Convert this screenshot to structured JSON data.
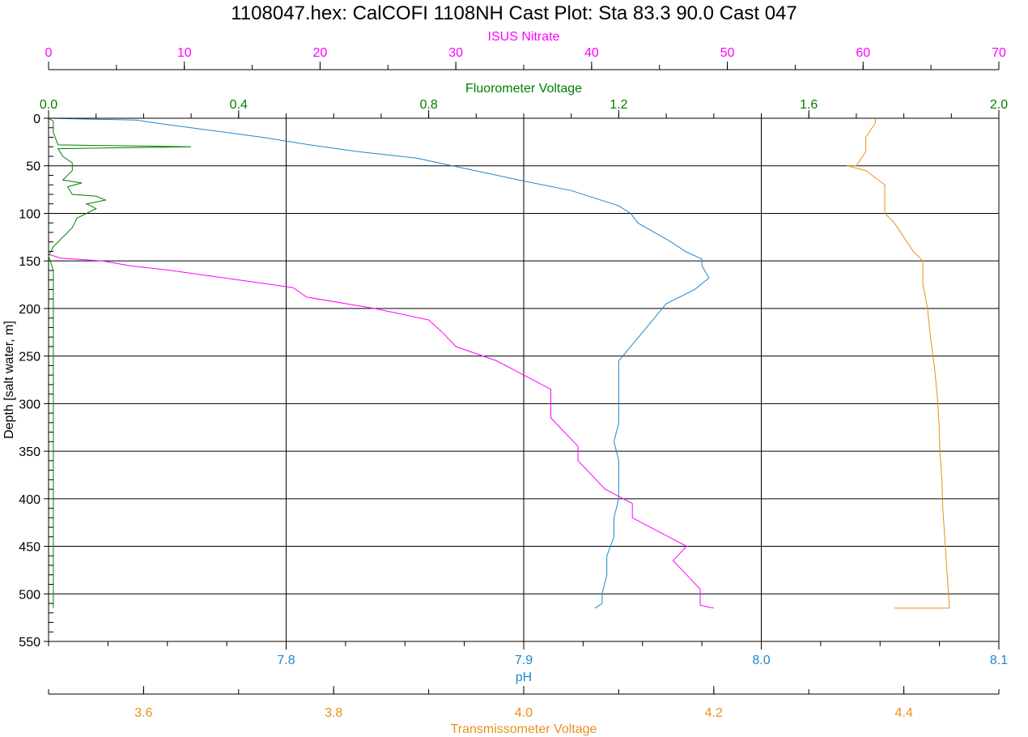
{
  "chart_data": {
    "type": "line",
    "title": "1108047.hex: CalCOFI 1108NH Cast Plot: Sta 83.3  90.0  Cast 047",
    "grid": true,
    "y_axis": {
      "label": "Depth [salt water, m]",
      "range": [
        0,
        550
      ],
      "inverted": true,
      "ticks": [
        0,
        50,
        100,
        150,
        200,
        250,
        300,
        350,
        400,
        450,
        500,
        550
      ],
      "tick_labels": [
        "0",
        "50",
        "100",
        "150",
        "200",
        "250",
        "300",
        "350",
        "400",
        "450",
        "500",
        "550"
      ],
      "color": "#000000"
    },
    "axes": {
      "nitrate": {
        "label": "ISUS Nitrate",
        "position": "top",
        "range": [
          0,
          70
        ],
        "color": "#ff00ff",
        "ticks": [
          0,
          10,
          20,
          30,
          40,
          50,
          60,
          70
        ],
        "tick_labels": [
          "0",
          "10",
          "20",
          "30",
          "40",
          "50",
          "60",
          "70"
        ]
      },
      "fluor": {
        "label": "Fluorometer Voltage",
        "position": "top",
        "range": [
          0,
          2
        ],
        "color": "#008000",
        "ticks": [
          0,
          0.4,
          0.8,
          1.2,
          1.6,
          2.0
        ],
        "tick_labels": [
          "0.0",
          "0.4",
          "0.8",
          "1.2",
          "1.6",
          "2.0"
        ]
      },
      "ph": {
        "label": "pH",
        "position": "bottom",
        "range": [
          7.7,
          8.1
        ],
        "color": "#1e88d0",
        "ticks": [
          7.8,
          7.9,
          8.0,
          8.1
        ],
        "tick_labels": [
          "7.8",
          "7.9",
          "8.0",
          "8.1"
        ]
      },
      "trans": {
        "label": "Transmissometer Voltage",
        "position": "bottom",
        "range": [
          3.5,
          4.5
        ],
        "color": "#e8901e",
        "ticks": [
          3.6,
          3.8,
          4.0,
          4.2,
          4.4
        ],
        "tick_labels": [
          "3.6",
          "3.8",
          "4.0",
          "4.2",
          "4.4"
        ]
      }
    },
    "series": [
      {
        "axis": "nitrate",
        "color": "#ff00ff",
        "points": [
          [
            0,
            143
          ],
          [
            0.9,
            147
          ],
          [
            4,
            150
          ],
          [
            6,
            155
          ],
          [
            9,
            160
          ],
          [
            13,
            168
          ],
          [
            18,
            178
          ],
          [
            19,
            188
          ],
          [
            24,
            200
          ],
          [
            28,
            212
          ],
          [
            29,
            225
          ],
          [
            30,
            240
          ],
          [
            33,
            255
          ],
          [
            35,
            270
          ],
          [
            37,
            285
          ],
          [
            37,
            300
          ],
          [
            37,
            315
          ],
          [
            38,
            330
          ],
          [
            39,
            345
          ],
          [
            39,
            360
          ],
          [
            40,
            375
          ],
          [
            41,
            390
          ],
          [
            43,
            405
          ],
          [
            43,
            420
          ],
          [
            45,
            435
          ],
          [
            47,
            450
          ],
          [
            46,
            465
          ],
          [
            47,
            480
          ],
          [
            48,
            495
          ],
          [
            48,
            505
          ],
          [
            48,
            512
          ],
          [
            49,
            515
          ]
        ]
      },
      {
        "axis": "fluor",
        "color": "#008000",
        "points": [
          [
            0.0,
            0
          ],
          [
            0.01,
            3
          ],
          [
            0.01,
            15
          ],
          [
            0.02,
            28
          ],
          [
            0.3,
            30
          ],
          [
            0.02,
            32
          ],
          [
            0.03,
            40
          ],
          [
            0.05,
            47
          ],
          [
            0.05,
            55
          ],
          [
            0.03,
            65
          ],
          [
            0.07,
            68
          ],
          [
            0.04,
            72
          ],
          [
            0.05,
            80
          ],
          [
            0.1,
            82
          ],
          [
            0.12,
            86
          ],
          [
            0.08,
            90
          ],
          [
            0.1,
            95
          ],
          [
            0.06,
            105
          ],
          [
            0.05,
            115
          ],
          [
            0.03,
            125
          ],
          [
            0.01,
            135
          ],
          [
            0.0,
            145
          ],
          [
            0.01,
            160
          ],
          [
            0.01,
            250
          ],
          [
            0.01,
            400
          ],
          [
            0.01,
            515
          ]
        ]
      },
      {
        "axis": "ph",
        "color": "#1e88d0",
        "points": [
          [
            7.7,
            0
          ],
          [
            7.737,
            2
          ],
          [
            7.745,
            5
          ],
          [
            7.76,
            10
          ],
          [
            7.79,
            20
          ],
          [
            7.81,
            28
          ],
          [
            7.83,
            35
          ],
          [
            7.855,
            42
          ],
          [
            7.87,
            50
          ],
          [
            7.885,
            58
          ],
          [
            7.9,
            66
          ],
          [
            7.92,
            76
          ],
          [
            7.93,
            84
          ],
          [
            7.94,
            92
          ],
          [
            7.945,
            100
          ],
          [
            7.948,
            110
          ],
          [
            7.955,
            120
          ],
          [
            7.962,
            130
          ],
          [
            7.968,
            140
          ],
          [
            7.975,
            148
          ],
          [
            7.975,
            155
          ],
          [
            7.978,
            168
          ],
          [
            7.972,
            180
          ],
          [
            7.96,
            195
          ],
          [
            7.955,
            210
          ],
          [
            7.95,
            225
          ],
          [
            7.945,
            240
          ],
          [
            7.94,
            255
          ],
          [
            7.94,
            270
          ],
          [
            7.94,
            285
          ],
          [
            7.94,
            300
          ],
          [
            7.94,
            320
          ],
          [
            7.938,
            340
          ],
          [
            7.94,
            360
          ],
          [
            7.94,
            380
          ],
          [
            7.94,
            400
          ],
          [
            7.938,
            420
          ],
          [
            7.938,
            440
          ],
          [
            7.935,
            460
          ],
          [
            7.935,
            480
          ],
          [
            7.933,
            500
          ],
          [
            7.933,
            510
          ],
          [
            7.93,
            515
          ]
        ]
      },
      {
        "axis": "trans",
        "color": "#e8901e",
        "points": [
          [
            4.0,
            0
          ],
          [
            4.37,
            0
          ],
          [
            4.37,
            5
          ],
          [
            4.36,
            20
          ],
          [
            4.36,
            35
          ],
          [
            4.35,
            50
          ],
          [
            4.34,
            50
          ],
          [
            4.36,
            55
          ],
          [
            4.38,
            70
          ],
          [
            4.38,
            85
          ],
          [
            4.38,
            100
          ],
          [
            4.39,
            110
          ],
          [
            4.4,
            125
          ],
          [
            4.41,
            140
          ],
          [
            4.42,
            150
          ],
          [
            4.42,
            160
          ],
          [
            4.42,
            175
          ],
          [
            4.425,
            200
          ],
          [
            4.428,
            230
          ],
          [
            4.432,
            260
          ],
          [
            4.435,
            290
          ],
          [
            4.437,
            320
          ],
          [
            4.438,
            350
          ],
          [
            4.44,
            380
          ],
          [
            4.441,
            410
          ],
          [
            4.443,
            440
          ],
          [
            4.445,
            470
          ],
          [
            4.447,
            500
          ],
          [
            4.448,
            515
          ],
          [
            4.39,
            515
          ]
        ]
      }
    ]
  }
}
